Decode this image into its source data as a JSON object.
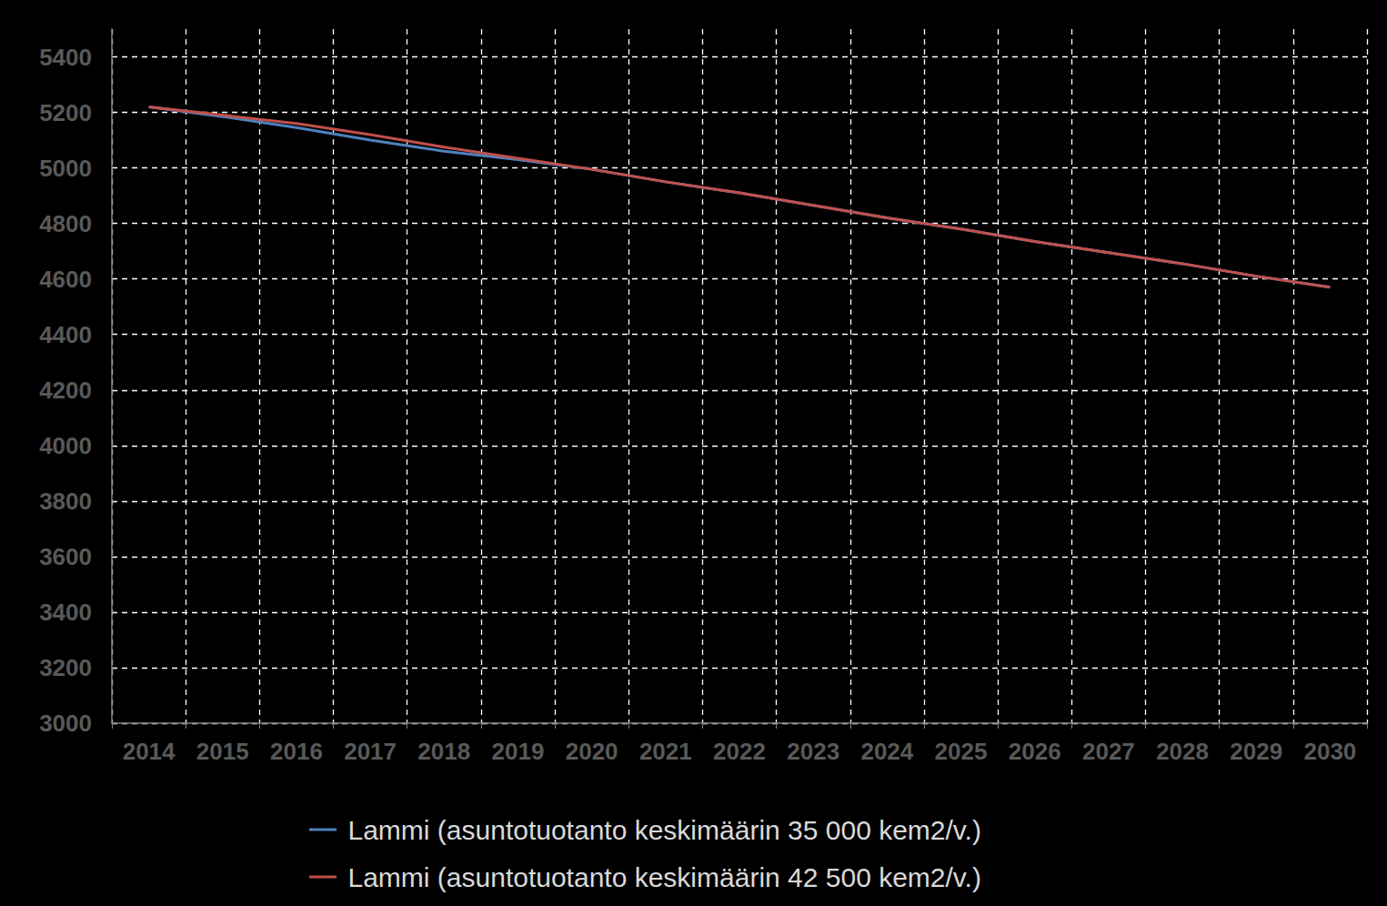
{
  "chart_data": {
    "type": "line",
    "categories": [
      "2014",
      "2015",
      "2016",
      "2017",
      "2018",
      "2019",
      "2020",
      "2021",
      "2022",
      "2023",
      "2024",
      "2025",
      "2026",
      "2027",
      "2028",
      "2029",
      "2030"
    ],
    "series": [
      {
        "name": "Lammi (asuntotuotanto keskimäärin 35 000 kem2/v.)",
        "color": "#4f81bd",
        "values": [
          5220,
          5185,
          5145,
          5100,
          5060,
          5030,
          4995,
          4950,
          4910,
          4865,
          4820,
          4780,
          4735,
          4695,
          4655,
          4610,
          4570
        ]
      },
      {
        "name": "Lammi (asuntotuotanto keskimäärin 42 500 kem2/v.)",
        "color": "#c0504d",
        "values": [
          5220,
          5190,
          5160,
          5120,
          5075,
          5035,
          4995,
          4950,
          4910,
          4865,
          4820,
          4780,
          4735,
          4695,
          4655,
          4610,
          4570
        ]
      }
    ],
    "ylim": [
      3000,
      5500
    ],
    "yticks": [
      3000,
      3200,
      3400,
      3600,
      3800,
      4000,
      4200,
      4400,
      4600,
      4800,
      5000,
      5200,
      5400
    ],
    "grid": true,
    "legend": "bottom"
  }
}
